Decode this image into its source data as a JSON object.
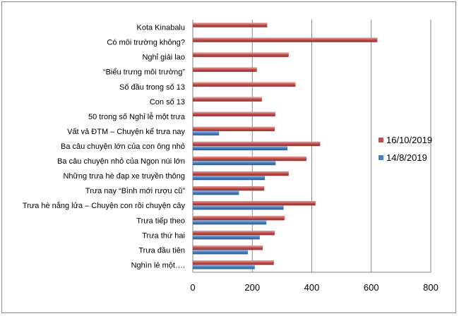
{
  "chart_data": {
    "type": "bar",
    "orientation": "horizontal",
    "categories": [
      "Kota Kinabalu",
      "Có môi trường không?",
      "Nghỉ giải lao",
      "“Biểu trưng môi trường”",
      "Số đầu trong số 13",
      "Con số 13",
      "50 trong số Nghỉ lễ một trưa",
      "Vất vả ĐTM – Chuyện kể trưa nay",
      "Ba câu chuyện lớn của con ông nhỏ",
      "Ba câu chuyện nhỏ của Ngọn núi lớn",
      "Những trưa hè đạp xe truyền thông",
      "Trưa nay “Bình mới rượu cũ”",
      "Trưa hè nắng lửa – Chuyện con rồi chuyện cây",
      "Trưa tiếp theo",
      "Trưa thứ hai",
      "Trưa đầu tiên",
      "Nghìn lẻ một…."
    ],
    "series": [
      {
        "name": "16/10/2019",
        "color": "#c0504d",
        "values": [
          250,
          620,
          322,
          215,
          345,
          232,
          277,
          275,
          428,
          382,
          322,
          240,
          412,
          308,
          275,
          235,
          272
        ]
      },
      {
        "name": "14/8/2019",
        "color": "#4f81bd",
        "values": [
          null,
          null,
          null,
          null,
          null,
          null,
          null,
          88,
          318,
          278,
          242,
          155,
          305,
          247,
          225,
          185,
          208
        ]
      }
    ],
    "xlim": [
      0,
      800
    ],
    "xticks": [
      0,
      200,
      400,
      600,
      800
    ],
    "grid": true,
    "legend_position": "right"
  }
}
